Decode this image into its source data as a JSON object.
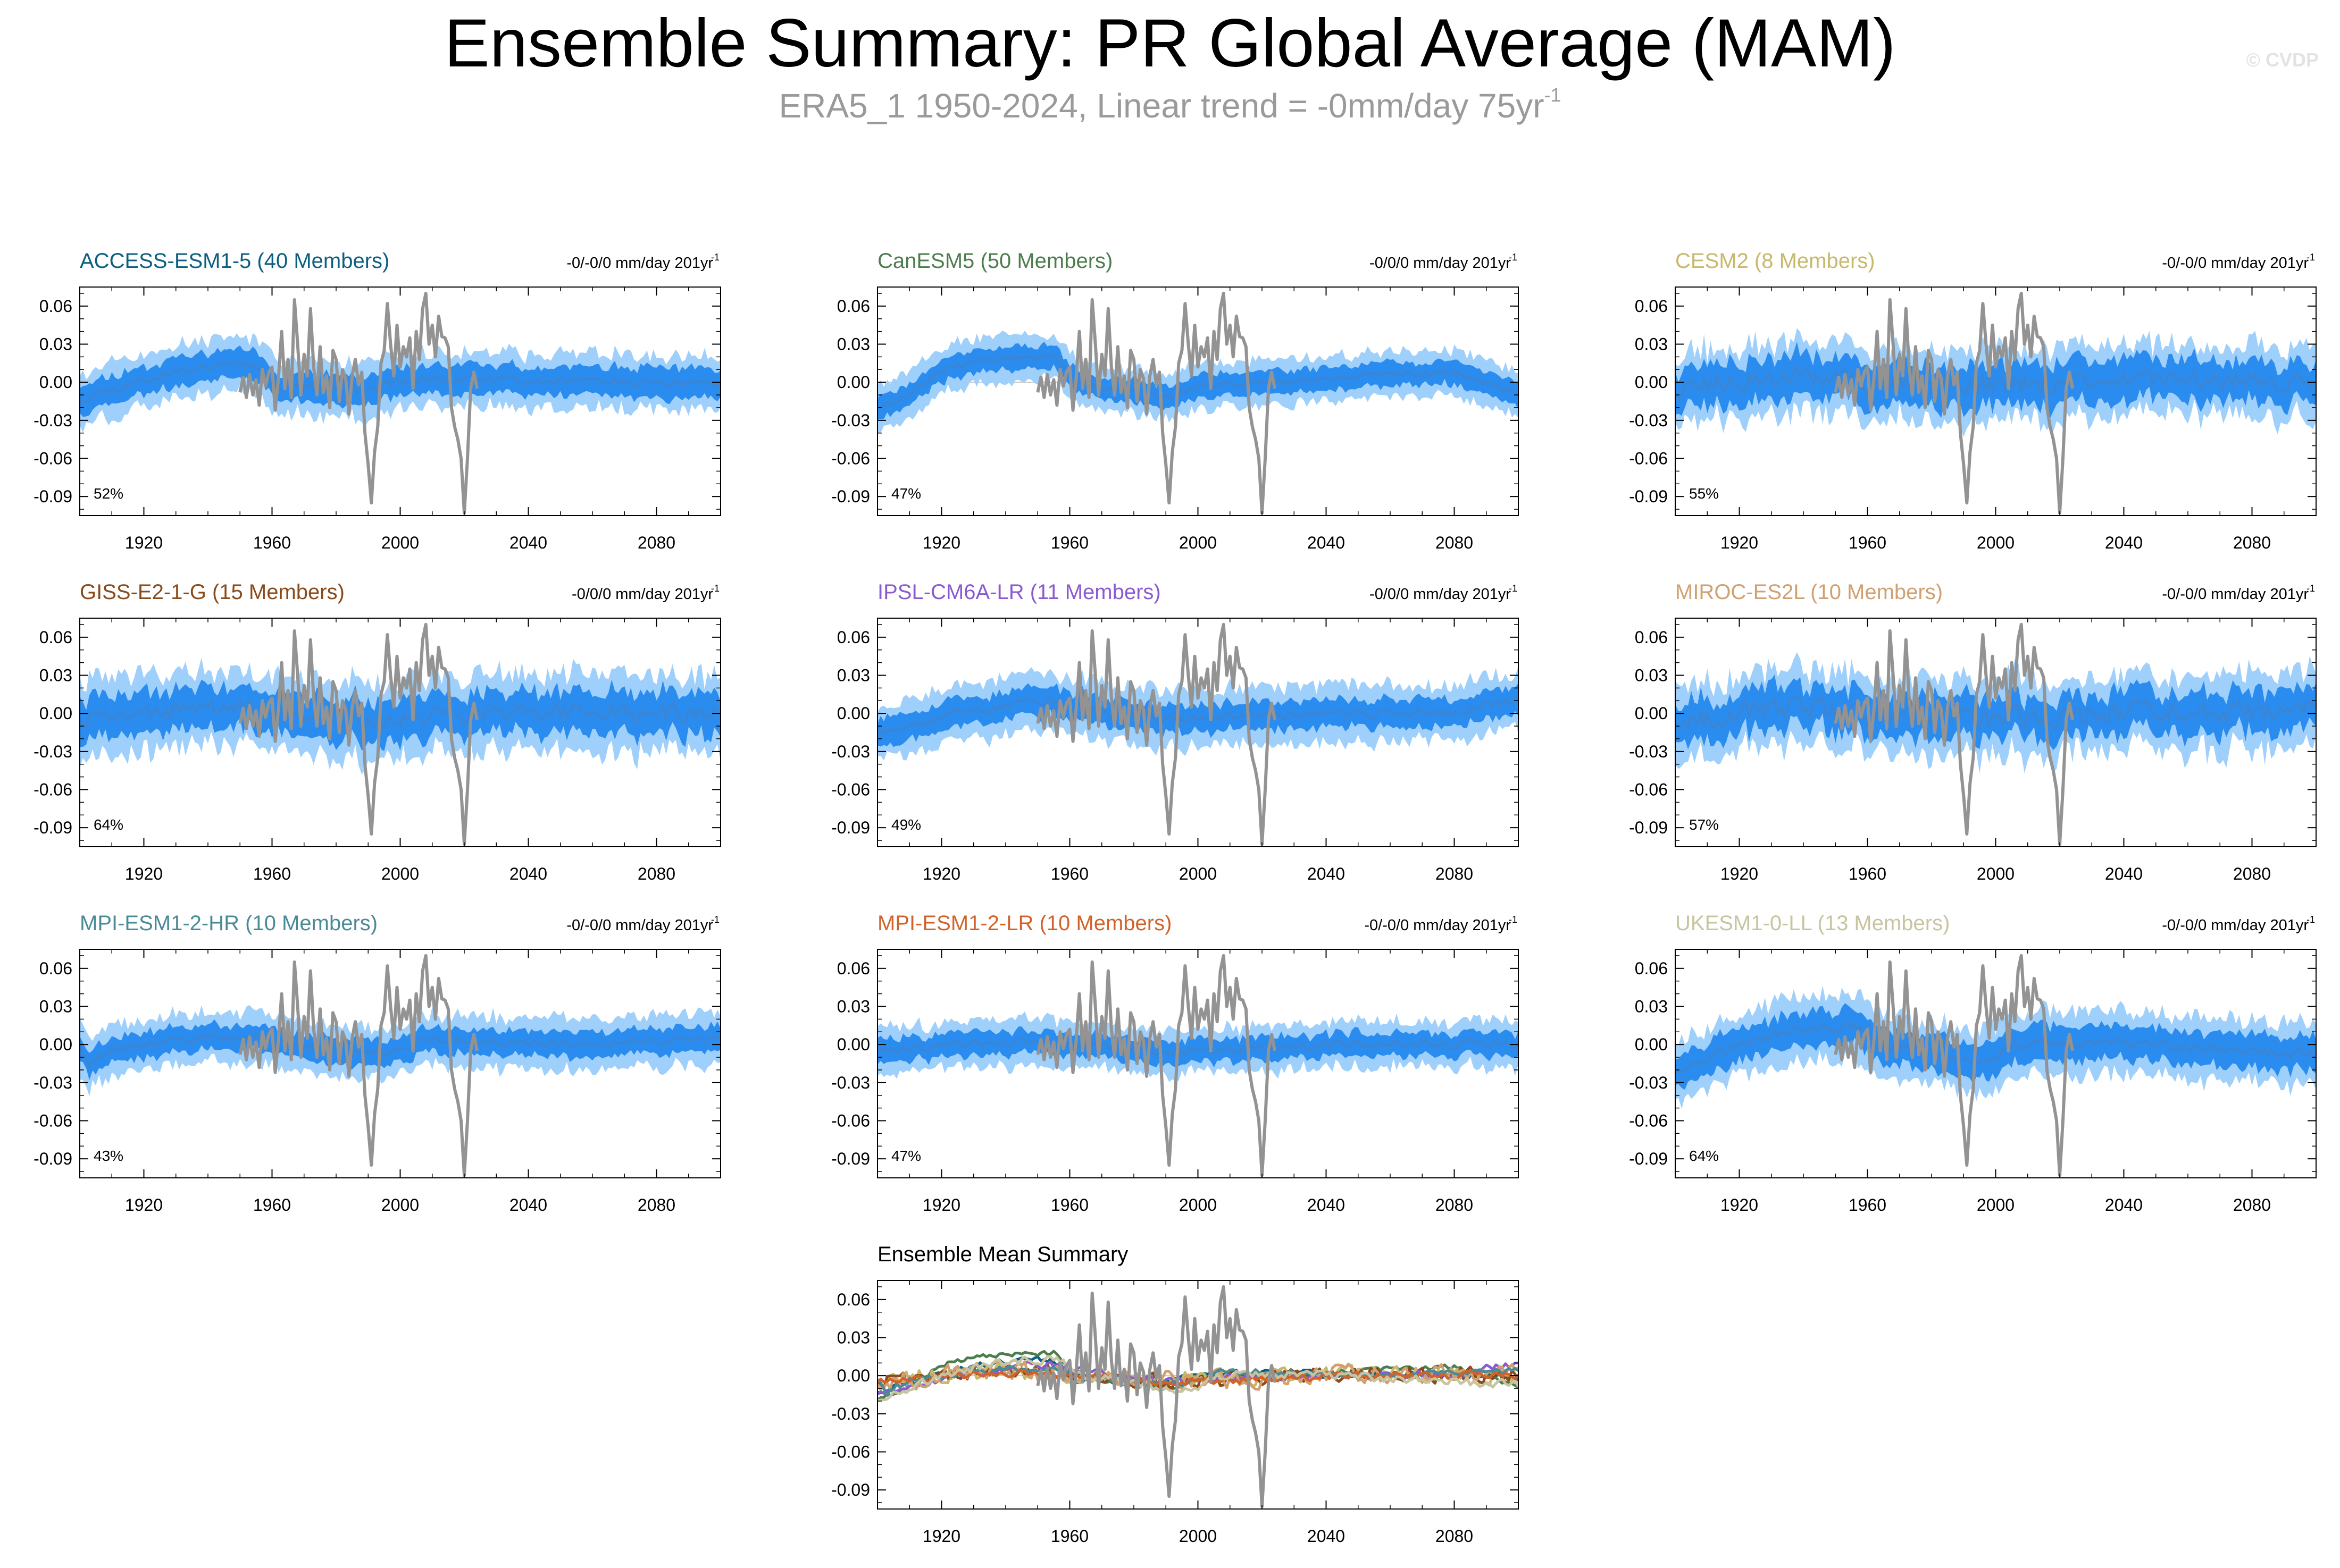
{
  "header": {
    "title": "Ensemble Summary: PR Global Average (MAM)",
    "subtitle_main": "ERA5_1 1950-2024, Linear trend = -0mm/day 75yr",
    "subtitle_sup": "-1",
    "watermark": "© CVDP"
  },
  "colors": {
    "ensemble_inner": "#2b8cf0",
    "ensemble_outer": "#9fd0fb",
    "ensemble_mean": "#3a86d6",
    "observations": "#939393"
  },
  "chart_data": [
    {
      "type": "area",
      "title": "ACCESS-ESM1-5 (40 Members)",
      "title_color": "#0b5f80",
      "trend": "-0/-0/0 mm/day 201yr",
      "trend_sup": "-1",
      "pct": "52%",
      "xlim": [
        1900,
        2100
      ],
      "ylim": [
        -0.105,
        0.075
      ],
      "xticks": [
        1920,
        1960,
        2000,
        2040,
        2080
      ],
      "yticks": [
        0.06,
        0.03,
        0.0,
        -0.03,
        -0.06,
        -0.09
      ],
      "ytick_labels": [
        "0.06",
        "0.03",
        "0.00",
        "-0.03",
        "-0.06",
        "-0.09"
      ],
      "mean_anchors": [
        [
          1900,
          -0.013
        ],
        [
          1910,
          -0.005
        ],
        [
          1925,
          0.005
        ],
        [
          1945,
          0.016
        ],
        [
          1955,
          0.014
        ],
        [
          1962,
          -0.003
        ],
        [
          1980,
          -0.005
        ],
        [
          1990,
          -0.007
        ],
        [
          1995,
          -0.002
        ],
        [
          2005,
          0.002
        ],
        [
          2050,
          0.002
        ],
        [
          2100,
          -0.002
        ]
      ],
      "spread_inner": 0.011,
      "spread_outer": 0.021,
      "noise": 0.008,
      "seed": 11
    },
    {
      "type": "area",
      "title": "CanESM5 (50 Members)",
      "title_color": "#4d7d4d",
      "trend": "-0/0/0 mm/day 201yr",
      "trend_sup": "-1",
      "pct": "47%",
      "xlim": [
        1900,
        2100
      ],
      "ylim": [
        -0.105,
        0.075
      ],
      "xticks": [
        1920,
        1960,
        2000,
        2040,
        2080
      ],
      "yticks": [
        0.06,
        0.03,
        0.0,
        -0.03,
        -0.06,
        -0.09
      ],
      "ytick_labels": [
        "0.06",
        "0.03",
        "0.00",
        "-0.03",
        "-0.06",
        "-0.09"
      ],
      "mean_anchors": [
        [
          1900,
          -0.02
        ],
        [
          1910,
          -0.01
        ],
        [
          1920,
          0.01
        ],
        [
          1935,
          0.018
        ],
        [
          1955,
          0.02
        ],
        [
          1962,
          0.0
        ],
        [
          1980,
          -0.008
        ],
        [
          1992,
          -0.012
        ],
        [
          2000,
          -0.003
        ],
        [
          2060,
          0.006
        ],
        [
          2080,
          0.008
        ],
        [
          2100,
          -0.01
        ]
      ],
      "spread_inner": 0.009,
      "spread_outer": 0.018,
      "noise": 0.005,
      "seed": 23
    },
    {
      "type": "area",
      "title": "CESM2 (8 Members)",
      "title_color": "#c8b86c",
      "trend": "-0/-0/0 mm/day 201yr",
      "trend_sup": "-1",
      "pct": "55%",
      "xlim": [
        1900,
        2100
      ],
      "ylim": [
        -0.105,
        0.075
      ],
      "xticks": [
        1920,
        1960,
        2000,
        2040,
        2080
      ],
      "yticks": [
        0.06,
        0.03,
        0.0,
        -0.03,
        -0.06,
        -0.09
      ],
      "ytick_labels": [
        "0.06",
        "0.03",
        "0.00",
        "-0.03",
        "-0.06",
        "-0.09"
      ],
      "mean_anchors": [
        [
          1900,
          -0.005
        ],
        [
          1940,
          0.005
        ],
        [
          1970,
          -0.002
        ],
        [
          1995,
          -0.003
        ],
        [
          2050,
          0.002
        ],
        [
          2100,
          0.0
        ]
      ],
      "spread_inner": 0.016,
      "spread_outer": 0.028,
      "noise": 0.02,
      "seed": 37
    },
    {
      "type": "area",
      "title": "GISS-E2-1-G (15 Members)",
      "title_color": "#8a4a1a",
      "trend": "-0/0/0 mm/day 201yr",
      "trend_sup": "-1",
      "pct": "64%",
      "xlim": [
        1900,
        2100
      ],
      "ylim": [
        -0.105,
        0.075
      ],
      "xticks": [
        1920,
        1960,
        2000,
        2040,
        2080
      ],
      "yticks": [
        0.06,
        0.03,
        0.0,
        -0.03,
        -0.06,
        -0.09
      ],
      "ytick_labels": [
        "0.06",
        "0.03",
        "0.00",
        "-0.03",
        "-0.06",
        "-0.09"
      ],
      "mean_anchors": [
        [
          1900,
          -0.004
        ],
        [
          1940,
          0.005
        ],
        [
          1970,
          -0.002
        ],
        [
          1992,
          -0.006
        ],
        [
          2040,
          0.002
        ],
        [
          2100,
          0.0
        ]
      ],
      "spread_inner": 0.016,
      "spread_outer": 0.03,
      "noise": 0.017,
      "seed": 41
    },
    {
      "type": "area",
      "title": "IPSL-CM6A-LR (11 Members)",
      "title_color": "#8a5ad0",
      "trend": "-0/0/0 mm/day 201yr",
      "trend_sup": "-1",
      "pct": "49%",
      "xlim": [
        1900,
        2100
      ],
      "ylim": [
        -0.105,
        0.075
      ],
      "xticks": [
        1920,
        1960,
        2000,
        2040,
        2080
      ],
      "yticks": [
        0.06,
        0.03,
        0.0,
        -0.03,
        -0.06,
        -0.09
      ],
      "ytick_labels": [
        "0.06",
        "0.03",
        "0.00",
        "-0.03",
        "-0.06",
        "-0.09"
      ],
      "mean_anchors": [
        [
          1900,
          -0.015
        ],
        [
          1915,
          -0.005
        ],
        [
          1950,
          0.01
        ],
        [
          1962,
          0.005
        ],
        [
          1980,
          -0.003
        ],
        [
          1995,
          -0.004
        ],
        [
          2050,
          0.0
        ],
        [
          2080,
          0.002
        ],
        [
          2100,
          0.01
        ]
      ],
      "spread_inner": 0.011,
      "spread_outer": 0.022,
      "noise": 0.009,
      "seed": 53
    },
    {
      "type": "area",
      "title": "MIROC-ES2L (10 Members)",
      "title_color": "#d0a070",
      "trend": "-0/-0/0 mm/day 201yr",
      "trend_sup": "-1",
      "pct": "57%",
      "xlim": [
        1900,
        2100
      ],
      "ylim": [
        -0.105,
        0.075
      ],
      "xticks": [
        1920,
        1960,
        2000,
        2040,
        2080
      ],
      "yticks": [
        0.06,
        0.03,
        0.0,
        -0.03,
        -0.06,
        -0.09
      ],
      "ytick_labels": [
        "0.06",
        "0.03",
        "0.00",
        "-0.03",
        "-0.06",
        "-0.09"
      ],
      "mean_anchors": [
        [
          1900,
          -0.004
        ],
        [
          1940,
          0.004
        ],
        [
          1970,
          -0.002
        ],
        [
          1995,
          -0.004
        ],
        [
          2050,
          0.002
        ],
        [
          2100,
          0.0
        ]
      ],
      "spread_inner": 0.016,
      "spread_outer": 0.03,
      "noise": 0.022,
      "seed": 67
    },
    {
      "type": "area",
      "title": "MPI-ESM1-2-HR (10 Members)",
      "title_color": "#4a8a96",
      "trend": "-0/-0/0 mm/day 201yr",
      "trend_sup": "-1",
      "pct": "43%",
      "xlim": [
        1900,
        2100
      ],
      "ylim": [
        -0.105,
        0.075
      ],
      "xticks": [
        1920,
        1960,
        2000,
        2040,
        2080
      ],
      "yticks": [
        0.06,
        0.03,
        0.0,
        -0.03,
        -0.06,
        -0.09
      ],
      "ytick_labels": [
        "0.06",
        "0.03",
        "0.00",
        "-0.03",
        "-0.06",
        "-0.09"
      ],
      "mean_anchors": [
        [
          1900,
          -0.002
        ],
        [
          1903,
          -0.015
        ],
        [
          1910,
          -0.003
        ],
        [
          1940,
          0.006
        ],
        [
          1960,
          0.004
        ],
        [
          1975,
          -0.004
        ],
        [
          1992,
          -0.008
        ],
        [
          2010,
          0.004
        ],
        [
          2050,
          0.0
        ],
        [
          2100,
          0.004
        ]
      ],
      "spread_inner": 0.01,
      "spread_outer": 0.02,
      "noise": 0.008,
      "seed": 79
    },
    {
      "type": "area",
      "title": "MPI-ESM1-2-LR (10 Members)",
      "title_color": "#d2622a",
      "trend": "-0/-0/0 mm/day 201yr",
      "trend_sup": "-1",
      "pct": "47%",
      "xlim": [
        1900,
        2100
      ],
      "ylim": [
        -0.105,
        0.075
      ],
      "xticks": [
        1920,
        1960,
        2000,
        2040,
        2080
      ],
      "yticks": [
        0.06,
        0.03,
        0.0,
        -0.03,
        -0.06,
        -0.09
      ],
      "ytick_labels": [
        "0.06",
        "0.03",
        "0.00",
        "-0.03",
        "-0.06",
        "-0.09"
      ],
      "mean_anchors": [
        [
          1900,
          -0.004
        ],
        [
          1940,
          0.002
        ],
        [
          1970,
          0.0
        ],
        [
          1992,
          -0.006
        ],
        [
          2050,
          0.0
        ],
        [
          2100,
          0.0
        ]
      ],
      "spread_inner": 0.009,
      "spread_outer": 0.018,
      "noise": 0.008,
      "seed": 83
    },
    {
      "type": "area",
      "title": "UKESM1-0-LL (13 Members)",
      "title_color": "#c8c4a0",
      "trend": "-0/-0/0 mm/day 201yr",
      "trend_sup": "-1",
      "pct": "64%",
      "xlim": [
        1900,
        2100
      ],
      "ylim": [
        -0.105,
        0.075
      ],
      "xticks": [
        1920,
        1960,
        2000,
        2040,
        2080
      ],
      "yticks": [
        0.06,
        0.03,
        0.0,
        -0.03,
        -0.06,
        -0.09
      ],
      "ytick_labels": [
        "0.06",
        "0.03",
        "0.00",
        "-0.03",
        "-0.06",
        "-0.09"
      ],
      "mean_anchors": [
        [
          1900,
          -0.02
        ],
        [
          1915,
          -0.005
        ],
        [
          1935,
          0.01
        ],
        [
          1955,
          0.015
        ],
        [
          1965,
          0.0
        ],
        [
          1985,
          -0.01
        ],
        [
          1995,
          -0.014
        ],
        [
          2010,
          0.002
        ],
        [
          2040,
          0.0
        ],
        [
          2100,
          -0.008
        ]
      ],
      "spread_inner": 0.013,
      "spread_outer": 0.025,
      "noise": 0.01,
      "seed": 97
    },
    {
      "type": "line",
      "title": "Ensemble Mean Summary",
      "title_color": "#000000",
      "xlim": [
        1900,
        2100
      ],
      "ylim": [
        -0.105,
        0.075
      ],
      "xticks": [
        1920,
        1960,
        2000,
        2040,
        2080
      ],
      "yticks": [
        0.06,
        0.03,
        0.0,
        -0.03,
        -0.06,
        -0.09
      ],
      "ytick_labels": [
        "0.06",
        "0.03",
        "0.00",
        "-0.03",
        "-0.06",
        "-0.09"
      ],
      "series_colors": [
        "#0b5f80",
        "#4d7d4d",
        "#c8b86c",
        "#8a4a1a",
        "#8a5ad0",
        "#d0a070",
        "#4a8a96",
        "#d2622a",
        "#c8c4a0"
      ]
    }
  ],
  "observations": {
    "name": "ERA5_1",
    "x_start": 1950,
    "values": [
      -0.008,
      0.004,
      -0.012,
      0.006,
      -0.01,
      0.002,
      -0.018,
      0.01,
      -0.003,
      0.008,
      0.012,
      -0.022,
      0.003,
      0.04,
      -0.005,
      0.018,
      -0.012,
      0.065,
      0.03,
      -0.01,
      0.022,
      0.005,
      0.058,
      0.012,
      -0.01,
      0.028,
      -0.008,
      0.005,
      -0.02,
      0.025,
      0.018,
      -0.015,
      0.01,
      0.003,
      -0.025,
      0.005,
      0.018,
      -0.002,
      0.008,
      -0.04,
      -0.065,
      -0.095,
      -0.055,
      -0.035,
      0.015,
      0.025,
      0.062,
      0.03,
      0.005,
      0.045,
      0.012,
      0.028,
      0.02,
      0.035,
      -0.005,
      0.04,
      0.018,
      0.058,
      0.07,
      0.03,
      0.045,
      0.02,
      0.052,
      0.036,
      0.035,
      0.028,
      -0.02,
      -0.035,
      -0.045,
      -0.06,
      -0.103,
      -0.06,
      -0.005,
      0.008,
      -0.005
    ]
  }
}
